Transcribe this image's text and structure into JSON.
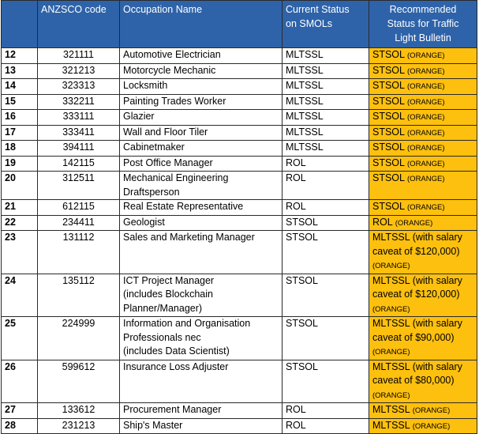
{
  "header": {
    "col1": "",
    "col2": "ANZSCO code",
    "col3": "Occupation Name",
    "col4_line1": "Current Status",
    "col4_line2": "on SMOLs",
    "col5_line1": "Recommended",
    "col5_line2": "Status for Traffic",
    "col5_line3": "Light Bulletin"
  },
  "rows": [
    {
      "num": "12",
      "code": "321111",
      "name": [
        "Automotive Electrician"
      ],
      "status": "MLTSSL",
      "rec": [
        "STSOL"
      ],
      "tag": "(ORANGE)",
      "inline": true
    },
    {
      "num": "13",
      "code": "321213",
      "name": [
        "Motorcycle Mechanic"
      ],
      "status": "MLTSSL",
      "rec": [
        "STSOL"
      ],
      "tag": "(ORANGE)",
      "inline": true
    },
    {
      "num": "14",
      "code": "323313",
      "name": [
        "Locksmith"
      ],
      "status": "MLTSSL",
      "rec": [
        "STSOL"
      ],
      "tag": "(ORANGE)",
      "inline": true
    },
    {
      "num": "15",
      "code": "332211",
      "name": [
        "Painting Trades Worker"
      ],
      "status": "MLTSSL",
      "rec": [
        "STSOL"
      ],
      "tag": "(ORANGE)",
      "inline": true
    },
    {
      "num": "16",
      "code": "333111",
      "name": [
        "Glazier"
      ],
      "status": "MLTSSL",
      "rec": [
        "STSOL"
      ],
      "tag": "(ORANGE)",
      "inline": true
    },
    {
      "num": "17",
      "code": "333411",
      "name": [
        "Wall and Floor Tiler"
      ],
      "status": "MLTSSL",
      "rec": [
        "STSOL"
      ],
      "tag": "(ORANGE)",
      "inline": true
    },
    {
      "num": "18",
      "code": "394111",
      "name": [
        "Cabinetmaker"
      ],
      "status": "MLTSSL",
      "rec": [
        "STSOL"
      ],
      "tag": "(ORANGE)",
      "inline": true
    },
    {
      "num": "19",
      "code": "142115",
      "name": [
        "Post Office Manager"
      ],
      "status": "ROL",
      "rec": [
        "STSOL"
      ],
      "tag": "(ORANGE)",
      "inline": true
    },
    {
      "num": "20",
      "code": "312511",
      "name": [
        "Mechanical Engineering",
        "Draftsperson"
      ],
      "status": "ROL",
      "rec": [
        "STSOL"
      ],
      "tag": "(ORANGE)",
      "inline": true
    },
    {
      "num": "21",
      "code": "612115",
      "name": [
        "Real Estate Representative"
      ],
      "status": "ROL",
      "rec": [
        "STSOL"
      ],
      "tag": "(ORANGE)",
      "inline": true
    },
    {
      "num": "22",
      "code": "234411",
      "name": [
        "Geologist"
      ],
      "status": "STSOL",
      "rec": [
        "ROL"
      ],
      "tag": "(ORANGE)",
      "inline": true
    },
    {
      "num": "23",
      "code": "131112",
      "name": [
        "Sales and Marketing Manager"
      ],
      "status": "STSOL",
      "rec": [
        "MLTSSL (with salary",
        "caveat of $120,000)"
      ],
      "tag": "(ORANGE)",
      "inline": false
    },
    {
      "num": "24",
      "code": "135112",
      "name": [
        "ICT Project Manager",
        "(includes Blockchain",
        "Planner/Manager)"
      ],
      "status": "STSOL",
      "rec": [
        "MLTSSL (with salary",
        "caveat of $120,000)"
      ],
      "tag": "(ORANGE)",
      "inline": false
    },
    {
      "num": "25",
      "code": "224999",
      "name": [
        "Information and Organisation",
        "Professionals nec",
        "(includes Data Scientist)"
      ],
      "status": "STSOL",
      "rec": [
        "MLTSSL (with salary",
        "caveat of $90,000)"
      ],
      "tag": "(ORANGE)",
      "inline": false
    },
    {
      "num": "26",
      "code": "599612",
      "name": [
        "Insurance Loss Adjuster"
      ],
      "status": "STSOL",
      "rec": [
        "MLTSSL (with salary",
        "caveat of $80,000)"
      ],
      "tag": "(ORANGE)",
      "inline": false
    },
    {
      "num": "27",
      "code": "133612",
      "name": [
        "Procurement Manager"
      ],
      "status": "ROL",
      "rec": [
        "MLTSSL"
      ],
      "tag": "(ORANGE)",
      "inline": true
    },
    {
      "num": "28",
      "code": "231213",
      "name": [
        "Ship's Master"
      ],
      "status": "ROL",
      "rec": [
        "MLTSSL"
      ],
      "tag": "(ORANGE)",
      "inline": true
    }
  ],
  "colors": {
    "header_bg": "#2e63a9",
    "header_text": "#ffffff",
    "recommended_bg": "#fdc00e",
    "border": "#2a2a2a"
  }
}
